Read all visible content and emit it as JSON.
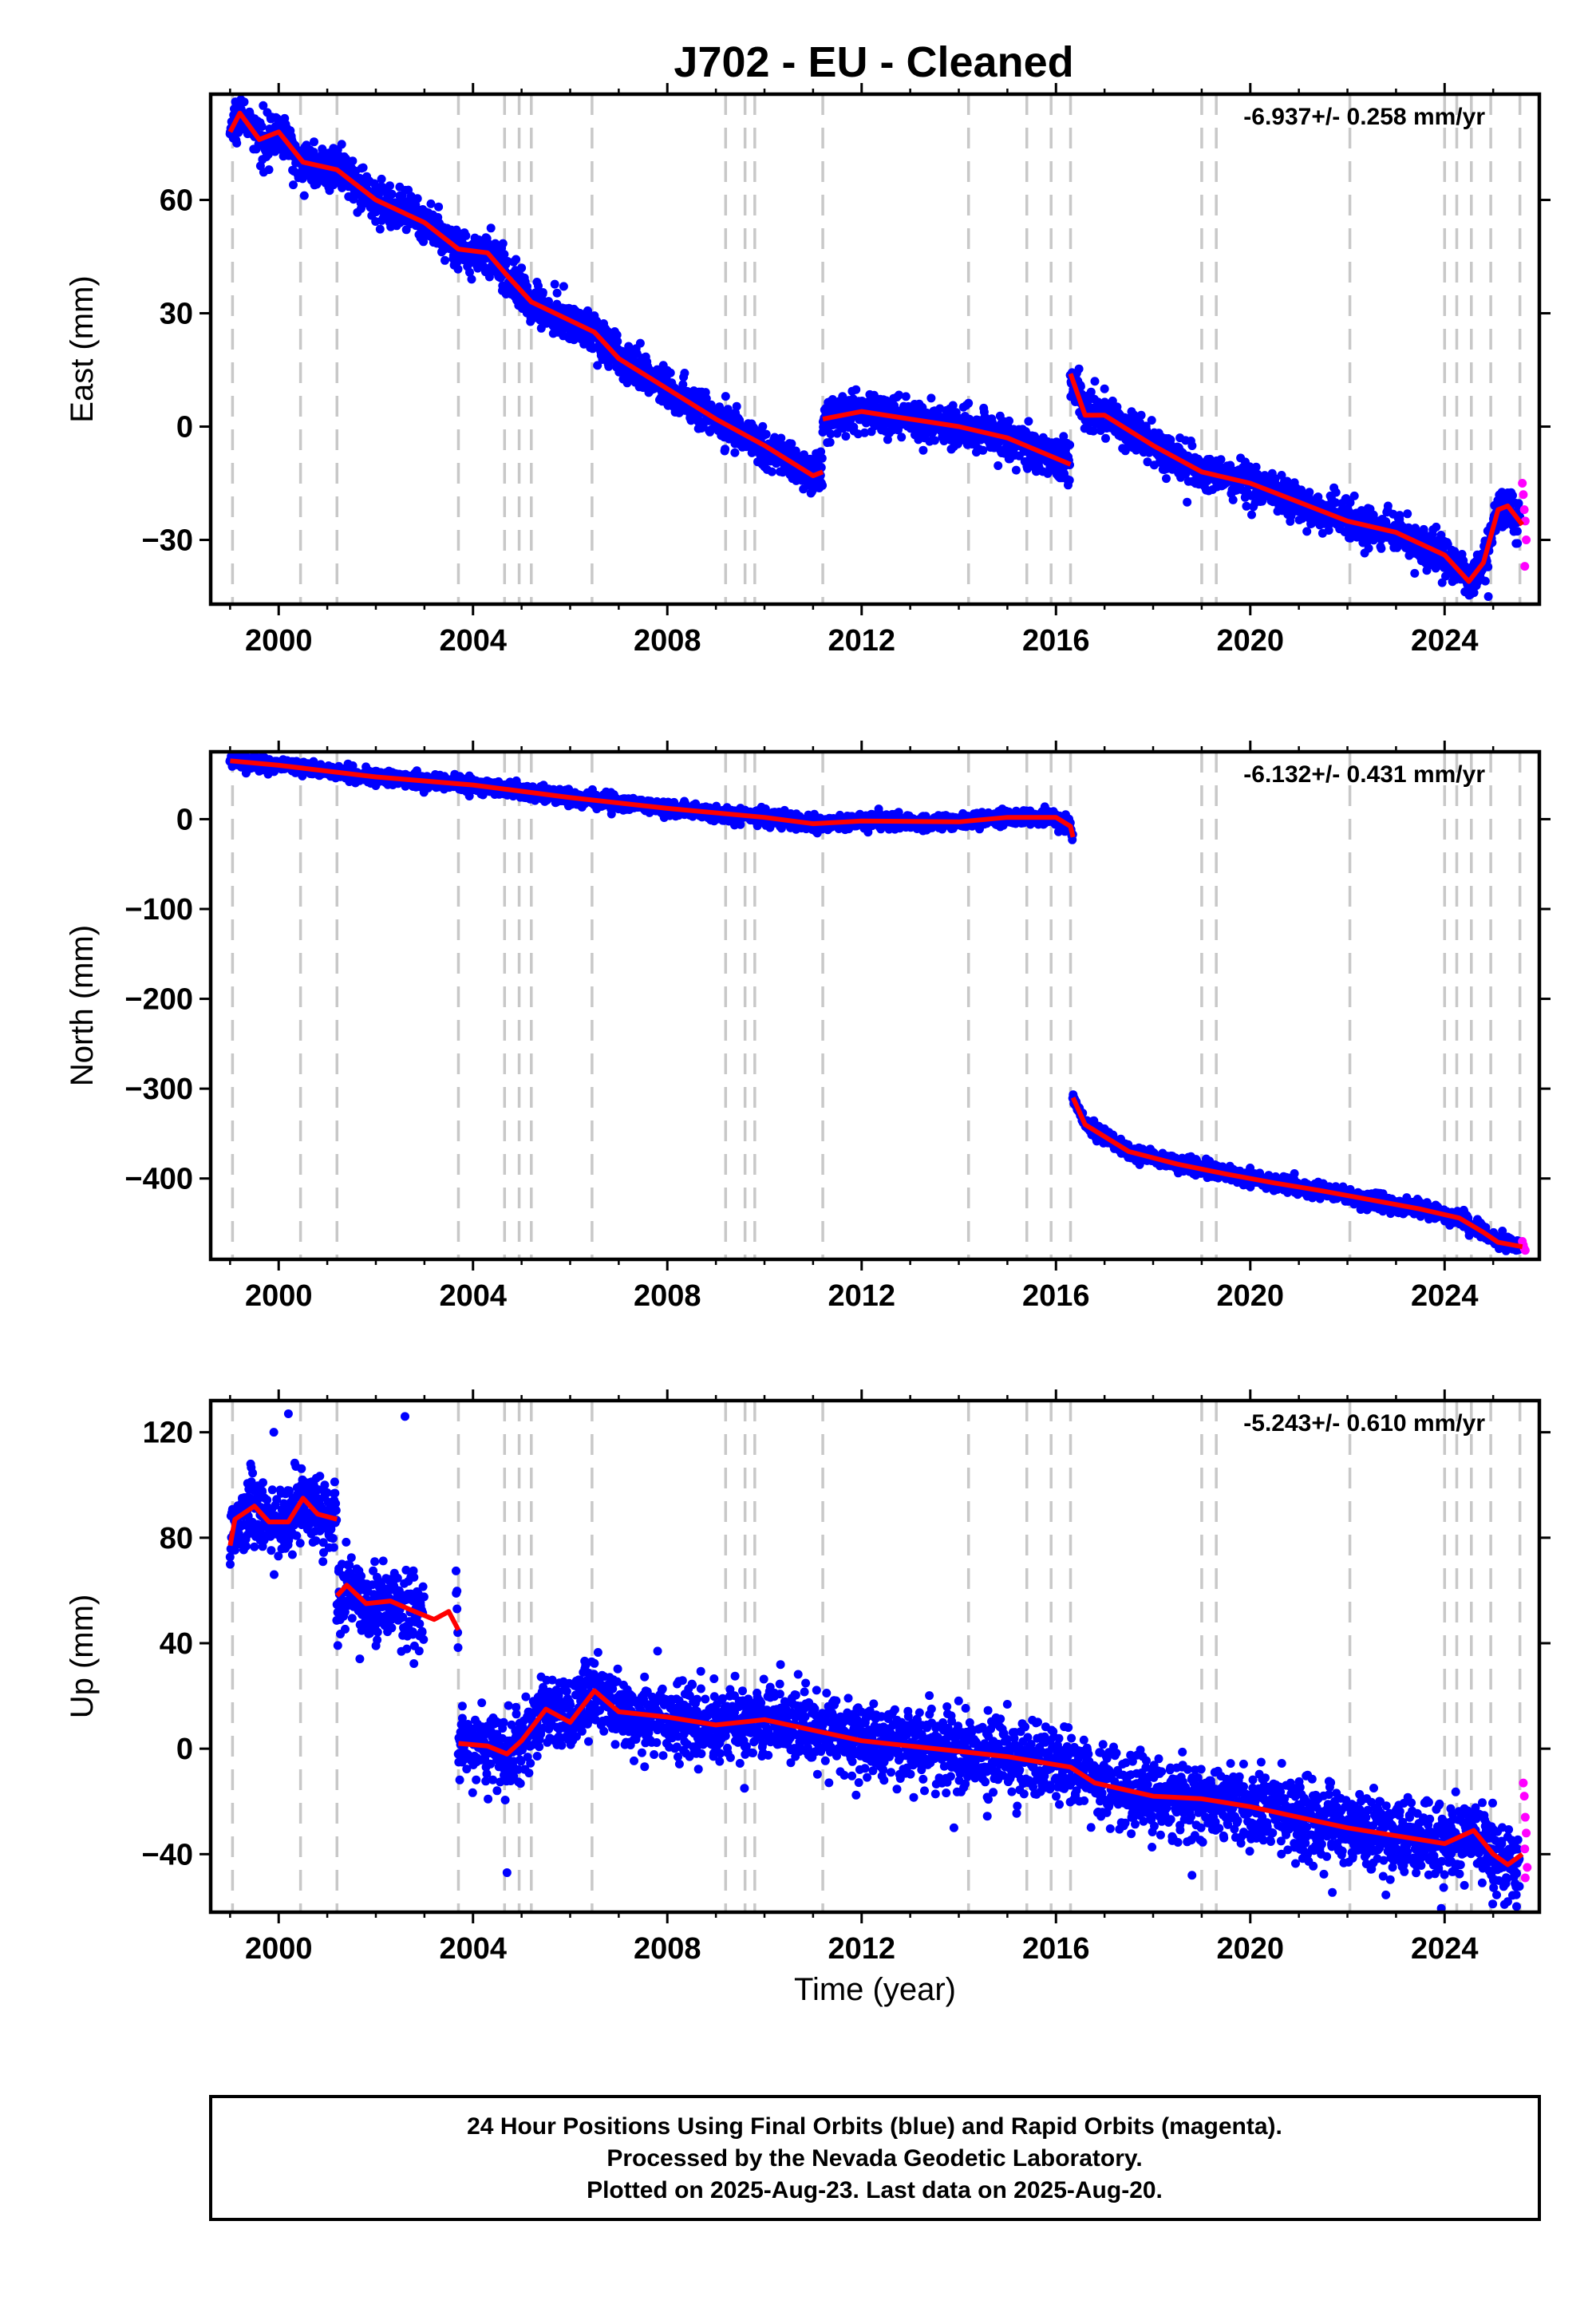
{
  "title": "J702  - EU - Cleaned",
  "colors": {
    "final": "#0000ff",
    "rapid": "#ff00ff",
    "model": "#ff0000",
    "breaks": "#c8c8c8"
  },
  "chart_data": [
    {
      "type": "scatter",
      "component": "east",
      "ylabel": "East (mm)",
      "xlabel": "",
      "xlim": [
        1998.6,
        2025.95
      ],
      "ylim": [
        -47,
        88
      ],
      "yticks": [
        -30,
        0,
        30,
        60
      ],
      "xticks": [
        2000,
        2004,
        2008,
        2012,
        2016,
        2020,
        2024
      ],
      "rate_label": "-6.937+/- 0.258 mm/yr",
      "model_segments": [
        [
          [
            1999.0,
            78
          ],
          [
            1999.2,
            83
          ],
          [
            1999.6,
            76
          ],
          [
            2000.0,
            78
          ],
          [
            2000.5,
            70
          ],
          [
            2001.2,
            68
          ],
          [
            2002.0,
            60
          ],
          [
            2003.0,
            54
          ],
          [
            2003.7,
            47
          ],
          [
            2004.3,
            46
          ],
          [
            2004.7,
            40
          ],
          [
            2005.2,
            33
          ],
          [
            2006.5,
            25
          ],
          [
            2007.0,
            18
          ],
          [
            2008.0,
            10
          ],
          [
            2009.0,
            2
          ],
          [
            2010.0,
            -5
          ],
          [
            2011.0,
            -13
          ],
          [
            2011.2,
            -12
          ]
        ],
        [
          [
            2011.2,
            2
          ],
          [
            2012.0,
            4
          ],
          [
            2013.0,
            2
          ],
          [
            2014.0,
            0
          ],
          [
            2015.0,
            -3
          ],
          [
            2016.3,
            -10
          ]
        ],
        [
          [
            2016.3,
            14
          ],
          [
            2016.6,
            3
          ],
          [
            2017.0,
            3
          ],
          [
            2018.0,
            -5
          ],
          [
            2019.0,
            -12
          ],
          [
            2020.0,
            -15
          ],
          [
            2021.0,
            -20
          ],
          [
            2022.0,
            -25
          ],
          [
            2023.0,
            -28
          ],
          [
            2024.0,
            -34
          ],
          [
            2024.5,
            -41
          ],
          [
            2024.8,
            -36
          ],
          [
            2025.1,
            -22
          ],
          [
            2025.3,
            -21
          ],
          [
            2025.6,
            -26
          ]
        ]
      ],
      "noise": 2.6,
      "gaps": [],
      "outliers": [
        [
          1999.8,
          68
        ],
        [
          2000.3,
          64
        ],
        [
          2005.0,
          42
        ],
        [
          2009.2,
          8
        ],
        [
          2016.8,
          12
        ],
        [
          2017.0,
          10
        ],
        [
          2018.7,
          -20
        ],
        [
          2024.9,
          -45
        ]
      ],
      "rapid_points": [
        [
          2025.6,
          -15
        ],
        [
          2025.62,
          -18
        ],
        [
          2025.64,
          -22
        ],
        [
          2025.66,
          -25
        ],
        [
          2025.68,
          -30
        ],
        [
          2025.65,
          -37
        ]
      ]
    },
    {
      "type": "scatter",
      "component": "north",
      "ylabel": "North (mm)",
      "xlabel": "",
      "xlim": [
        1998.6,
        2025.95
      ],
      "ylim": [
        -490,
        75
      ],
      "yticks": [
        -400,
        -300,
        -200,
        -100,
        0
      ],
      "xticks": [
        2000,
        2004,
        2008,
        2012,
        2016,
        2020,
        2024
      ],
      "rate_label": "-6.132+/- 0.431 mm/yr",
      "model_segments": [
        [
          [
            1999.0,
            65
          ],
          [
            2000.0,
            60
          ],
          [
            2002.0,
            47
          ],
          [
            2004.0,
            38
          ],
          [
            2006.0,
            24
          ],
          [
            2008.0,
            12
          ],
          [
            2010.0,
            2
          ],
          [
            2011.0,
            -5
          ],
          [
            2012.0,
            -2
          ],
          [
            2014.0,
            -3
          ],
          [
            2015.0,
            2
          ],
          [
            2016.0,
            2
          ],
          [
            2016.3,
            -8
          ],
          [
            2016.35,
            -20
          ]
        ],
        [
          [
            2016.35,
            -310
          ],
          [
            2016.6,
            -340
          ],
          [
            2017.5,
            -370
          ],
          [
            2018.5,
            -384
          ],
          [
            2019.5,
            -395
          ],
          [
            2020.5,
            -405
          ],
          [
            2021.5,
            -414
          ],
          [
            2022.5,
            -424
          ],
          [
            2023.5,
            -434
          ],
          [
            2024.3,
            -444
          ],
          [
            2024.8,
            -460
          ],
          [
            2025.1,
            -471
          ],
          [
            2025.6,
            -476
          ]
        ]
      ],
      "noise": 4.0,
      "gaps": [],
      "outliers": [
        [
          2003.8,
          42
        ],
        [
          2016.2,
          5
        ]
      ],
      "rapid_points": [
        [
          2025.6,
          -470
        ],
        [
          2025.62,
          -474
        ],
        [
          2025.64,
          -478
        ],
        [
          2025.66,
          -480
        ]
      ]
    },
    {
      "type": "scatter",
      "component": "up",
      "ylabel": "Up (mm)",
      "xlabel": "Time (year)",
      "xlim": [
        1998.6,
        2025.95
      ],
      "ylim": [
        -62,
        132
      ],
      "yticks": [
        -40,
        0,
        40,
        80,
        120
      ],
      "xticks": [
        2000,
        2004,
        2008,
        2012,
        2016,
        2020,
        2024
      ],
      "rate_label": "-5.243+/- 0.610 mm/yr",
      "model_segments": [
        [
          [
            1999.0,
            77
          ],
          [
            1999.1,
            87
          ],
          [
            1999.5,
            92
          ],
          [
            1999.8,
            86
          ],
          [
            2000.2,
            86
          ],
          [
            2000.5,
            95
          ],
          [
            2000.8,
            89
          ],
          [
            2001.2,
            87
          ]
        ],
        [
          [
            2001.2,
            58
          ],
          [
            2001.4,
            62
          ],
          [
            2001.8,
            55
          ],
          [
            2002.3,
            56
          ],
          [
            2002.8,
            52
          ],
          [
            2003.2,
            49
          ],
          [
            2003.5,
            52
          ],
          [
            2003.7,
            45
          ]
        ],
        [
          [
            2003.7,
            2
          ],
          [
            2004.3,
            1
          ],
          [
            2004.7,
            -2
          ],
          [
            2005.0,
            3
          ],
          [
            2005.5,
            15
          ],
          [
            2006.0,
            10
          ],
          [
            2006.5,
            22
          ],
          [
            2007.0,
            14
          ],
          [
            2008.0,
            12
          ],
          [
            2009.0,
            9
          ],
          [
            2010.0,
            11
          ],
          [
            2011.0,
            7
          ],
          [
            2012.0,
            3
          ],
          [
            2013.0,
            1
          ],
          [
            2014.0,
            -1
          ],
          [
            2015.0,
            -3
          ],
          [
            2016.3,
            -7
          ],
          [
            2016.8,
            -13
          ],
          [
            2018.0,
            -18
          ],
          [
            2019.0,
            -19
          ],
          [
            2020.0,
            -22
          ],
          [
            2021.0,
            -26
          ],
          [
            2022.0,
            -30
          ],
          [
            2023.0,
            -33
          ],
          [
            2024.0,
            -36
          ],
          [
            2024.6,
            -31
          ],
          [
            2025.0,
            -40
          ],
          [
            2025.3,
            -44
          ],
          [
            2025.6,
            -40
          ]
        ]
      ],
      "noise": 7.0,
      "gaps": [
        [
          2003.0,
          2003.65
        ]
      ],
      "outliers": [
        [
          2004.7,
          -47
        ],
        [
          2018.8,
          -48
        ],
        [
          2000.2,
          127
        ],
        [
          1999.9,
          120
        ],
        [
          2002.6,
          126
        ],
        [
          2007.8,
          37
        ],
        [
          2013.9,
          -30
        ],
        [
          2025.3,
          -58
        ]
      ],
      "rapid_points": [
        [
          2025.62,
          -13
        ],
        [
          2025.64,
          -18
        ],
        [
          2025.66,
          -26
        ],
        [
          2025.68,
          -32
        ],
        [
          2025.65,
          -38
        ],
        [
          2025.7,
          -45
        ],
        [
          2025.66,
          -49
        ]
      ]
    }
  ],
  "break_years": [
    1999.05,
    2000.45,
    2001.2,
    2003.7,
    2004.65,
    2004.95,
    2005.2,
    2006.45,
    2009.2,
    2009.6,
    2009.8,
    2011.2,
    2014.2,
    2015.4,
    2015.9,
    2016.3,
    2019.0,
    2019.3,
    2022.05,
    2024.0,
    2024.25,
    2024.55,
    2024.95,
    2025.55
  ],
  "footer": {
    "line1": "24 Hour Positions Using Final Orbits (blue) and Rapid Orbits (magenta).",
    "line2": "Processed by the Nevada Geodetic Laboratory.",
    "line3": "Plotted on 2025-Aug-23. Last data on 2025-Aug-20."
  }
}
